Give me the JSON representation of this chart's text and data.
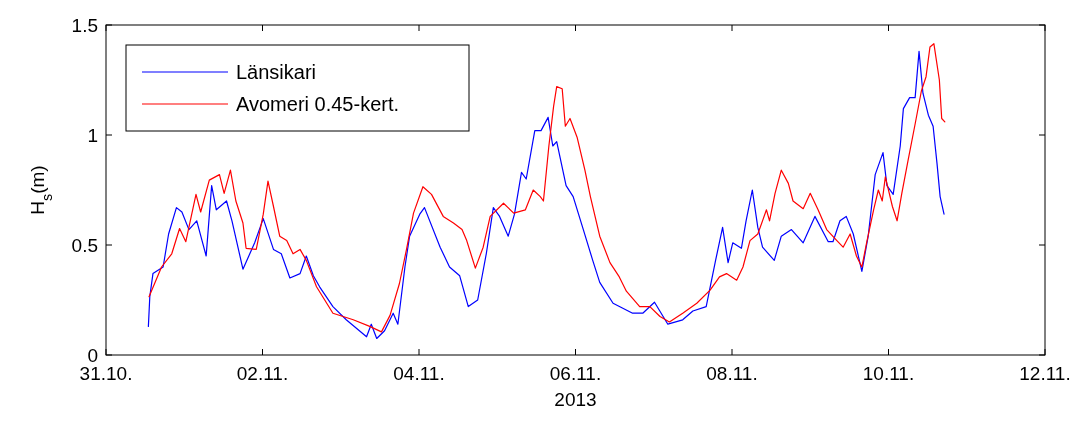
{
  "chart_data": {
    "type": "line",
    "xlabel": "2013",
    "ylabel": "H$_{s}$(m)",
    "legend": "top left",
    "line_style": "solid",
    "marker": "none",
    "xlim": [
      "2013-10-31",
      "2013-11-12"
    ],
    "xticks": [
      {
        "value": "2013-10-31",
        "label": "31.10."
      },
      {
        "value": "2013-11-02",
        "label": "02.11."
      },
      {
        "value": "2013-11-04",
        "label": "04.11."
      },
      {
        "value": "2013-11-06",
        "label": "06.11."
      },
      {
        "value": "2013-11-08",
        "label": "08.11."
      },
      {
        "value": "2013-11-10",
        "label": "10.11."
      },
      {
        "value": "2013-11-12",
        "label": "12.11."
      }
    ],
    "ylim": [
      0,
      1.5
    ],
    "yticks": [
      0,
      0.5,
      1,
      1.5
    ],
    "series": [
      {
        "name": "Länsikari",
        "color": "#0000ff",
        "x": [
          "2013-10-31T13:00",
          "2013-10-31T13:26",
          "2013-10-31T14:24",
          "2013-10-31T17:31",
          "2013-10-31T19:12",
          "2013-10-31T21:36",
          "2013-10-31T23:17",
          "2013-11-01T01:26",
          "2013-11-01T03:50",
          "2013-11-01T06:43",
          "2013-11-01T08:24",
          "2013-11-01T09:50",
          "2013-11-01T12:58",
          "2013-11-01T14:38",
          "2013-11-01T18:00",
          "2013-11-01T21:36",
          "2013-11-02T00:14",
          "2013-11-02T03:22",
          "2013-11-02T05:46",
          "2013-11-02T08:24",
          "2013-11-02T11:31",
          "2013-11-02T13:26",
          "2013-11-02T15:36",
          "2013-11-02T17:31",
          "2013-11-02T21:36",
          "2013-11-03T01:41",
          "2013-11-03T07:55",
          "2013-11-03T09:22",
          "2013-11-03T11:02",
          "2013-11-03T13:26",
          "2013-11-03T16:05",
          "2013-11-03T17:31",
          "2013-11-03T19:41",
          "2013-11-03T21:07",
          "2013-11-04T00:14",
          "2013-11-04T01:41",
          "2013-11-04T06:29",
          "2013-11-04T09:22",
          "2013-11-04T12:29",
          "2013-11-04T15:07",
          "2013-11-04T18:00",
          "2013-11-04T20:38",
          "2013-11-04T22:48",
          "2013-11-05T00:43",
          "2013-11-05T03:22",
          "2013-11-05T05:17",
          "2013-11-05T07:26",
          "2013-11-05T08:53",
          "2013-11-05T11:31",
          "2013-11-05T13:26",
          "2013-11-05T15:36",
          "2013-11-05T17:02",
          "2013-11-05T18:14",
          "2013-11-05T21:07",
          "2013-11-05T23:17",
          "2013-11-06T02:24",
          "2013-11-06T05:17",
          "2013-11-06T07:26",
          "2013-11-06T11:31",
          "2013-11-06T17:31",
          "2013-11-06T20:38",
          "2013-11-07T00:14",
          "2013-11-07T04:19",
          "2013-11-07T08:53",
          "2013-11-07T12:00",
          "2013-11-07T16:05",
          "2013-11-07T18:58",
          "2013-11-07T21:07",
          "2013-11-07T22:48",
          "2013-11-08T00:14",
          "2013-11-08T02:53",
          "2013-11-08T04:19",
          "2013-11-08T06:14",
          "2013-11-08T07:55",
          "2013-11-08T09:22",
          "2013-11-08T12:58",
          "2013-11-08T15:07",
          "2013-11-08T18:14",
          "2013-11-08T21:50",
          "2013-11-09T01:26",
          "2013-11-09T05:31",
          "2013-11-09T06:58",
          "2013-11-09T09:07",
          "2013-11-09T11:02",
          "2013-11-09T13:12",
          "2013-11-09T15:50",
          "2013-11-09T17:46",
          "2013-11-09T19:55",
          "2013-11-09T22:19",
          "2013-11-09T23:31",
          "2013-11-10T01:26",
          "2013-11-10T03:36",
          "2013-11-10T04:34",
          "2013-11-10T06:29",
          "2013-11-10T08:10",
          "2013-11-10T09:22",
          "2013-11-10T10:34",
          "2013-11-10T12:14",
          "2013-11-10T13:41",
          "2013-11-10T14:53",
          "2013-11-10T15:50",
          "2013-11-10T17:02"
        ],
        "values": [
          0.13,
          0.265,
          0.37,
          0.4,
          0.55,
          0.67,
          0.65,
          0.57,
          0.61,
          0.45,
          0.77,
          0.66,
          0.7,
          0.61,
          0.39,
          0.51,
          0.62,
          0.48,
          0.46,
          0.35,
          0.37,
          0.45,
          0.36,
          0.31,
          0.22,
          0.16,
          0.083,
          0.14,
          0.075,
          0.11,
          0.19,
          0.14,
          0.4,
          0.54,
          0.64,
          0.67,
          0.49,
          0.4,
          0.36,
          0.22,
          0.25,
          0.46,
          0.67,
          0.63,
          0.54,
          0.64,
          0.83,
          0.8,
          1.02,
          1.02,
          1.08,
          0.95,
          0.97,
          0.77,
          0.72,
          0.57,
          0.43,
          0.33,
          0.235,
          0.19,
          0.19,
          0.24,
          0.14,
          0.16,
          0.2,
          0.22,
          0.43,
          0.58,
          0.42,
          0.51,
          0.485,
          0.61,
          0.75,
          0.58,
          0.49,
          0.43,
          0.54,
          0.57,
          0.51,
          0.63,
          0.515,
          0.515,
          0.61,
          0.63,
          0.55,
          0.38,
          0.54,
          0.82,
          0.92,
          0.77,
          0.73,
          0.95,
          1.12,
          1.17,
          1.17,
          1.38,
          1.19,
          1.09,
          1.04,
          0.87,
          0.72,
          0.64
        ]
      },
      {
        "name": "Avomeri 0.45-kert.",
        "color": "#ff0000",
        "x": [
          "2013-10-31T13:12",
          "2013-10-31T17:02",
          "2013-10-31T20:10",
          "2013-10-31T22:34",
          "2013-11-01T00:29",
          "2013-11-01T03:36",
          "2013-11-01T05:02",
          "2013-11-01T07:41",
          "2013-11-01T10:48",
          "2013-11-01T12:14",
          "2013-11-01T14:10",
          "2013-11-01T15:50",
          "2013-11-01T18:00",
          "2013-11-01T18:58",
          "2013-11-01T22:05",
          "2013-11-02T00:14",
          "2013-11-02T01:41",
          "2013-11-02T03:22",
          "2013-11-02T05:17",
          "2013-11-02T07:26",
          "2013-11-02T09:22",
          "2013-11-02T11:31",
          "2013-11-02T13:26",
          "2013-11-02T16:34",
          "2013-11-02T21:36",
          "2013-11-03T03:50",
          "2013-11-03T08:53",
          "2013-11-03T12:29",
          "2013-11-03T15:07",
          "2013-11-03T18:00",
          "2013-11-03T20:10",
          "2013-11-03T22:19",
          "2013-11-04T01:12",
          "2013-11-04T03:50",
          "2013-11-04T07:26",
          "2013-11-04T10:34",
          "2013-11-04T13:12",
          "2013-11-04T14:38",
          "2013-11-04T17:17",
          "2013-11-04T19:41",
          "2013-11-04T21:50",
          "2013-11-05T01:55",
          "2013-11-05T05:02",
          "2013-11-05T08:38",
          "2013-11-05T11:02",
          "2013-11-05T13:12",
          "2013-11-05T14:10",
          "2013-11-05T15:50",
          "2013-11-05T17:17",
          "2013-11-05T18:14",
          "2013-11-05T19:55",
          "2013-11-05T20:53",
          "2013-11-05T22:19",
          "2013-11-06T00:29",
          "2013-11-06T02:53",
          "2013-11-06T04:34",
          "2013-11-06T07:26",
          "2013-11-06T10:34",
          "2013-11-06T13:26",
          "2013-11-06T15:36",
          "2013-11-06T19:41",
          "2013-11-06T22:48",
          "2013-11-07T01:55",
          "2013-11-07T04:48",
          "2013-11-07T08:53",
          "2013-11-07T13:12",
          "2013-11-07T17:17",
          "2013-11-07T20:10",
          "2013-11-07T22:19",
          "2013-11-08T01:26",
          "2013-11-08T03:22",
          "2013-11-08T05:31",
          "2013-11-08T07:55",
          "2013-11-08T10:34",
          "2013-11-08T11:31",
          "2013-11-08T13:12",
          "2013-11-08T15:07",
          "2013-11-08T17:17",
          "2013-11-08T18:43",
          "2013-11-08T21:50",
          "2013-11-09T00:00",
          "2013-11-09T02:24",
          "2013-11-09T05:02",
          "2013-11-09T08:10",
          "2013-11-09T10:05",
          "2013-11-09T12:14",
          "2013-11-09T14:10",
          "2013-11-09T15:50",
          "2013-11-09T17:17",
          "2013-11-09T19:26",
          "2013-11-09T20:53",
          "2013-11-09T22:05",
          "2013-11-09T23:02",
          "2013-11-10T01:12",
          "2013-11-10T02:38",
          "2013-11-10T04:05",
          "2013-11-10T06:00",
          "2013-11-10T08:10",
          "2013-11-10T10:05",
          "2013-11-10T11:31",
          "2013-11-10T12:43",
          "2013-11-10T13:55",
          "2013-11-10T15:36",
          "2013-11-10T16:19",
          "2013-11-10T17:17"
        ],
        "values": [
          0.265,
          0.4,
          0.46,
          0.575,
          0.515,
          0.73,
          0.65,
          0.795,
          0.82,
          0.735,
          0.84,
          0.7,
          0.6,
          0.485,
          0.48,
          0.64,
          0.79,
          0.675,
          0.54,
          0.52,
          0.46,
          0.48,
          0.43,
          0.31,
          0.19,
          0.16,
          0.13,
          0.105,
          0.18,
          0.325,
          0.48,
          0.645,
          0.765,
          0.73,
          0.63,
          0.6,
          0.57,
          0.52,
          0.395,
          0.49,
          0.63,
          0.69,
          0.645,
          0.66,
          0.75,
          0.72,
          0.7,
          0.95,
          1.13,
          1.22,
          1.21,
          1.04,
          1.075,
          0.99,
          0.84,
          0.72,
          0.54,
          0.42,
          0.355,
          0.29,
          0.22,
          0.22,
          0.175,
          0.15,
          0.19,
          0.235,
          0.295,
          0.355,
          0.37,
          0.34,
          0.4,
          0.52,
          0.55,
          0.66,
          0.61,
          0.735,
          0.84,
          0.78,
          0.7,
          0.665,
          0.735,
          0.66,
          0.57,
          0.52,
          0.49,
          0.55,
          0.45,
          0.4,
          0.51,
          0.66,
          0.75,
          0.7,
          0.81,
          0.675,
          0.61,
          0.735,
          0.885,
          1.05,
          1.2,
          1.265,
          1.4,
          1.415,
          1.25,
          1.075,
          1.06
        ]
      }
    ]
  }
}
